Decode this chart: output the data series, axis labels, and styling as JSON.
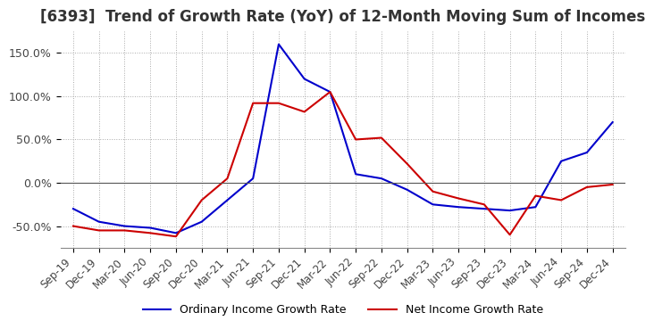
{
  "title": "[6393]  Trend of Growth Rate (YoY) of 12-Month Moving Sum of Incomes",
  "title_fontsize": 12,
  "ylim": [
    -75,
    175
  ],
  "yticks": [
    -50,
    0,
    50,
    100,
    150
  ],
  "ytick_labels": [
    "-50.0%",
    "0.0%",
    "50.0%",
    "100.0%",
    "150.0%"
  ],
  "background_color": "#ffffff",
  "grid_color": "#aaaaaa",
  "ordinary_color": "#0000cc",
  "net_color": "#cc0000",
  "legend_labels": [
    "Ordinary Income Growth Rate",
    "Net Income Growth Rate"
  ],
  "x_labels": [
    "Sep-19",
    "Dec-19",
    "Mar-20",
    "Jun-20",
    "Sep-20",
    "Dec-20",
    "Mar-21",
    "Jun-21",
    "Sep-21",
    "Dec-21",
    "Mar-22",
    "Jun-22",
    "Sep-22",
    "Dec-22",
    "Mar-23",
    "Jun-23",
    "Sep-23",
    "Dec-23",
    "Mar-24",
    "Jun-24",
    "Sep-24",
    "Dec-24"
  ],
  "ordinary_values": [
    -30,
    -45,
    -50,
    -52,
    -58,
    -45,
    -20,
    5,
    160,
    120,
    105,
    10,
    5,
    -8,
    -25,
    -28,
    -30,
    -32,
    -28,
    25,
    35,
    70
  ],
  "net_values": [
    -50,
    -55,
    -55,
    -58,
    -62,
    -20,
    5,
    92,
    92,
    82,
    105,
    50,
    52,
    22,
    -10,
    -18,
    -25,
    -60,
    -15,
    -20,
    -5,
    -2
  ]
}
